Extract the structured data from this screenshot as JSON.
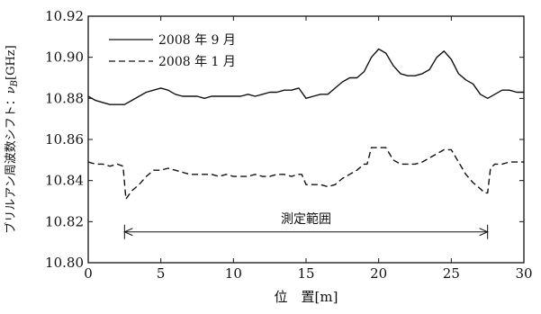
{
  "chart_data": {
    "type": "line",
    "title": "",
    "xlabel": "位　置[m]",
    "ylabel_text": "ブリルアン周波数シフト：",
    "ylabel_symbol": "ν",
    "ylabel_sub": "B",
    "ylabel_unit": "[GHz]",
    "xlim": [
      0,
      30
    ],
    "ylim": [
      10.8,
      10.92
    ],
    "x_ticks": [
      0,
      5,
      10,
      15,
      20,
      25,
      30
    ],
    "x_tick_labels": [
      "0",
      "5",
      "10",
      "15",
      "20",
      "25",
      "30"
    ],
    "y_ticks": [
      10.8,
      10.82,
      10.84,
      10.86,
      10.88,
      10.9,
      10.92
    ],
    "y_tick_labels": [
      "10.80",
      "10.82",
      "10.84",
      "10.86",
      "10.88",
      "10.90",
      "10.92"
    ],
    "legend_position": "top-left",
    "legend": [
      "2008 年 9 月",
      "2008 年 1 月"
    ],
    "annotation": {
      "label": "測定範囲",
      "from": 2.5,
      "to": 27.5,
      "y": 10.815
    },
    "series": [
      {
        "name": "2008 年 9 月",
        "style": "solid",
        "x": [
          0,
          0.5,
          1,
          1.5,
          2,
          2.5,
          3,
          3.5,
          4,
          4.5,
          5,
          5.5,
          6,
          6.5,
          7,
          7.5,
          8,
          8.5,
          9,
          9.5,
          10,
          10.5,
          11,
          11.5,
          12,
          12.5,
          13,
          13.5,
          14,
          14.5,
          15,
          15.5,
          16,
          16.5,
          17,
          17.5,
          18,
          18.5,
          19,
          19.5,
          20,
          20.5,
          21,
          21.5,
          22,
          22.5,
          23,
          23.5,
          24,
          24.5,
          25,
          25.5,
          26,
          26.5,
          27,
          27.5,
          28,
          28.5,
          29,
          29.5,
          30
        ],
        "values": [
          10.881,
          10.879,
          10.878,
          10.877,
          10.877,
          10.877,
          10.879,
          10.881,
          10.883,
          10.884,
          10.885,
          10.884,
          10.882,
          10.881,
          10.881,
          10.881,
          10.88,
          10.881,
          10.881,
          10.881,
          10.881,
          10.881,
          10.882,
          10.881,
          10.882,
          10.883,
          10.883,
          10.884,
          10.884,
          10.885,
          10.88,
          10.881,
          10.882,
          10.882,
          10.885,
          10.888,
          10.89,
          10.89,
          10.893,
          10.9,
          10.904,
          10.902,
          10.896,
          10.892,
          10.891,
          10.891,
          10.892,
          10.894,
          10.9,
          10.903,
          10.899,
          10.892,
          10.889,
          10.887,
          10.882,
          10.88,
          10.882,
          10.884,
          10.884,
          10.883,
          10.883
        ]
      },
      {
        "name": "2008 年 1 月",
        "style": "dashed",
        "x": [
          0,
          0.5,
          1,
          1.5,
          2,
          2.4,
          2.6,
          3,
          3.5,
          4,
          4.5,
          5,
          5.5,
          6,
          6.5,
          7,
          7.5,
          8,
          8.5,
          9,
          9.5,
          10,
          10.5,
          11,
          11.5,
          12,
          12.5,
          13,
          13.5,
          14,
          14.4,
          14.7,
          15,
          15.5,
          16,
          16.5,
          17,
          17.5,
          18,
          18.5,
          19,
          19.2,
          19.5,
          20,
          20.5,
          21,
          21.5,
          22,
          22.5,
          23,
          23.5,
          24,
          24.5,
          25,
          25.5,
          26,
          26.5,
          27,
          27.3,
          27.5,
          27.7,
          28,
          28.5,
          29,
          29.5,
          30
        ],
        "values": [
          10.849,
          10.848,
          10.848,
          10.847,
          10.848,
          10.847,
          10.831,
          10.835,
          10.838,
          10.842,
          10.845,
          10.845,
          10.846,
          10.845,
          10.844,
          10.843,
          10.843,
          10.843,
          10.843,
          10.842,
          10.843,
          10.842,
          10.842,
          10.842,
          10.843,
          10.842,
          10.842,
          10.843,
          10.843,
          10.842,
          10.843,
          10.843,
          10.838,
          10.838,
          10.838,
          10.837,
          10.838,
          10.841,
          10.843,
          10.845,
          10.848,
          10.848,
          10.856,
          10.856,
          10.856,
          10.85,
          10.848,
          10.848,
          10.848,
          10.849,
          10.851,
          10.853,
          10.855,
          10.855,
          10.849,
          10.843,
          10.839,
          10.836,
          10.834,
          10.834,
          10.846,
          10.848,
          10.848,
          10.849,
          10.849,
          10.849
        ]
      }
    ],
    "colors": {
      "line": "#111111",
      "axis": "#111111",
      "background": "#ffffff"
    }
  }
}
